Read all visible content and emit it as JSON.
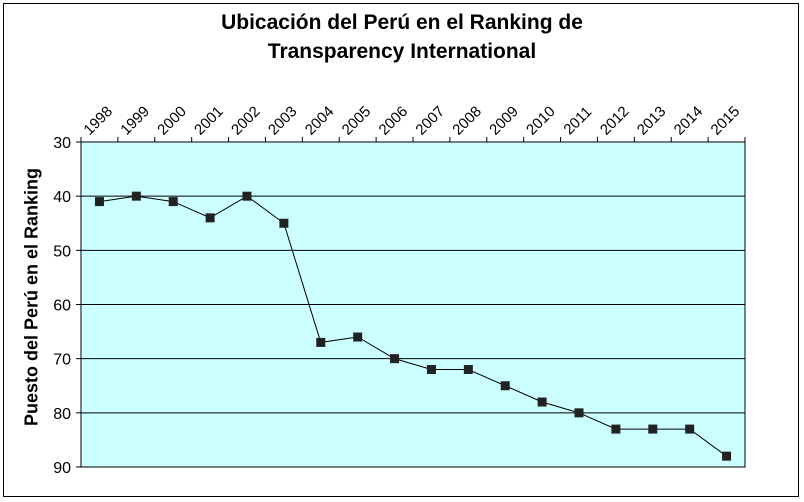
{
  "chart_data": {
    "type": "line",
    "title_line1": "Ubicación del Perú en el Ranking de",
    "title_line2": "Transparency International",
    "xlabel": "",
    "ylabel": "Puesto del Perú en el Ranking",
    "x_position": "top",
    "y_inverted": true,
    "ylim": [
      30,
      90
    ],
    "yticks": [
      "30",
      "40",
      "50",
      "60",
      "70",
      "80",
      "90"
    ],
    "categories": [
      "1998",
      "1999",
      "2000",
      "2001",
      "2002",
      "2003",
      "2004",
      "2005",
      "2006",
      "2007",
      "2008",
      "2009",
      "2010",
      "2011",
      "2012",
      "2013",
      "2014",
      "2015"
    ],
    "series": [
      {
        "values": [
          41,
          40,
          41,
          44,
          40,
          45,
          67,
          66,
          70,
          72,
          72,
          75,
          78,
          80,
          83,
          83,
          83,
          88
        ],
        "color": "#000000",
        "marker": "square"
      }
    ],
    "grid": true,
    "legend": "none",
    "plot_background": "#ccffff",
    "gridline_color": "#000000"
  }
}
